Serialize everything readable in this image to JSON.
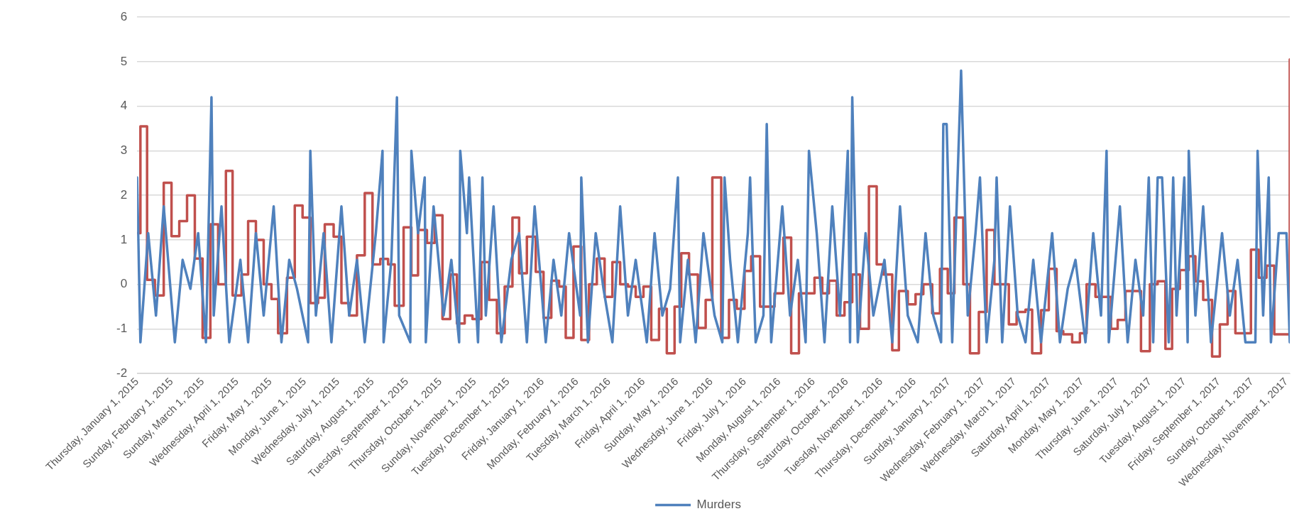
{
  "chart_data": {
    "type": "line",
    "ylim": [
      -2,
      6
    ],
    "yticks": [
      -2,
      -1,
      0,
      1,
      2,
      3,
      4,
      5,
      6
    ],
    "xlim": [
      "2015-01-01",
      "2017-11-04"
    ],
    "xticks": [
      {
        "value": "2015-01-01",
        "label": "Thursday, January 1, 2015"
      },
      {
        "value": "2015-02-01",
        "label": "Sunday, February 1, 2015"
      },
      {
        "value": "2015-03-01",
        "label": "Sunday, March 1, 2015"
      },
      {
        "value": "2015-04-01",
        "label": "Wednesday, April 1, 2015"
      },
      {
        "value": "2015-05-01",
        "label": "Friday, May 1, 2015"
      },
      {
        "value": "2015-06-01",
        "label": "Monday, June 1, 2015"
      },
      {
        "value": "2015-07-01",
        "label": "Wednesday, July 1, 2015"
      },
      {
        "value": "2015-08-01",
        "label": "Saturday, August 1, 2015"
      },
      {
        "value": "2015-09-01",
        "label": "Tuesday, September 1, 2015"
      },
      {
        "value": "2015-10-01",
        "label": "Thursday, October 1, 2015"
      },
      {
        "value": "2015-11-01",
        "label": "Sunday, November 1, 2015"
      },
      {
        "value": "2015-12-01",
        "label": "Tuesday, December 1, 2015"
      },
      {
        "value": "2016-01-01",
        "label": "Friday, January 1, 2016"
      },
      {
        "value": "2016-02-01",
        "label": "Monday, February 1, 2016"
      },
      {
        "value": "2016-03-01",
        "label": "Tuesday, March 1, 2016"
      },
      {
        "value": "2016-04-01",
        "label": "Friday, April 1, 2016"
      },
      {
        "value": "2016-05-01",
        "label": "Sunday, May 1, 2016"
      },
      {
        "value": "2016-06-01",
        "label": "Wednesday, June 1, 2016"
      },
      {
        "value": "2016-07-01",
        "label": "Friday, July 1, 2016"
      },
      {
        "value": "2016-08-01",
        "label": "Monday, August 1, 2016"
      },
      {
        "value": "2016-09-01",
        "label": "Thursday, September 1, 2016"
      },
      {
        "value": "2016-10-01",
        "label": "Saturday, October 1, 2016"
      },
      {
        "value": "2016-11-01",
        "label": "Tuesday, November 1, 2016"
      },
      {
        "value": "2016-12-01",
        "label": "Thursday, December 1, 2016"
      },
      {
        "value": "2017-01-01",
        "label": "Sunday, January 1, 2017"
      },
      {
        "value": "2017-02-01",
        "label": "Wednesday, February 1, 2017"
      },
      {
        "value": "2017-03-01",
        "label": "Wednesday, March 1, 2017"
      },
      {
        "value": "2017-04-01",
        "label": "Saturday, April 1, 2017"
      },
      {
        "value": "2017-05-01",
        "label": "Monday, May 1, 2017"
      },
      {
        "value": "2017-06-01",
        "label": "Thursday, June 1, 2017"
      },
      {
        "value": "2017-07-01",
        "label": "Saturday, July 1, 2017"
      },
      {
        "value": "2017-08-01",
        "label": "Tuesday, August 1, 2017"
      },
      {
        "value": "2017-09-01",
        "label": "Friday, September 1, 2017"
      },
      {
        "value": "2017-10-01",
        "label": "Sunday, October 1, 2017"
      },
      {
        "value": "2017-11-01",
        "label": "Wednesday, November 1, 2017"
      }
    ],
    "grid": "y",
    "legend": "bottom",
    "marker": "none",
    "line_style": "solid",
    "series": [
      {
        "name": "Murders",
        "color": "#4f81bd",
        "type": "line",
        "x": [
          "2015-01-01",
          "2015-01-04",
          "2015-01-11",
          "2015-01-18",
          "2015-01-25",
          "2015-02-04",
          "2015-02-11",
          "2015-02-18",
          "2015-02-25",
          "2015-03-04",
          "2015-03-09",
          "2015-03-11",
          "2015-03-18",
          "2015-03-25",
          "2015-04-04",
          "2015-04-11",
          "2015-04-18",
          "2015-04-25",
          "2015-05-04",
          "2015-05-11",
          "2015-05-18",
          "2015-05-25",
          "2015-06-04",
          "2015-06-06",
          "2015-06-11",
          "2015-06-18",
          "2015-06-25",
          "2015-07-04",
          "2015-07-11",
          "2015-07-18",
          "2015-07-25",
          "2015-08-04",
          "2015-08-10",
          "2015-08-11",
          "2015-08-18",
          "2015-08-23",
          "2015-08-25",
          "2015-09-04",
          "2015-09-05",
          "2015-09-11",
          "2015-09-17",
          "2015-09-18",
          "2015-09-25",
          "2015-10-04",
          "2015-10-11",
          "2015-10-18",
          "2015-10-19",
          "2015-10-25",
          "2015-10-27",
          "2015-11-04",
          "2015-11-08",
          "2015-11-11",
          "2015-11-18",
          "2015-11-25",
          "2015-12-04",
          "2015-12-11",
          "2015-12-18",
          "2015-12-25",
          "2016-01-04",
          "2016-01-11",
          "2016-01-18",
          "2016-01-25",
          "2016-02-04",
          "2016-02-05",
          "2016-02-11",
          "2016-02-18",
          "2016-02-25",
          "2016-03-04",
          "2016-03-11",
          "2016-03-18",
          "2016-03-25",
          "2016-04-04",
          "2016-04-11",
          "2016-04-18",
          "2016-04-25",
          "2016-05-02",
          "2016-05-04",
          "2016-05-11",
          "2016-05-18",
          "2016-05-25",
          "2016-06-04",
          "2016-06-11",
          "2016-06-13",
          "2016-06-18",
          "2016-06-25",
          "2016-07-04",
          "2016-07-06",
          "2016-07-11",
          "2016-07-18",
          "2016-07-21",
          "2016-07-25",
          "2016-08-04",
          "2016-08-11",
          "2016-08-18",
          "2016-08-25",
          "2016-08-28",
          "2016-09-04",
          "2016-09-11",
          "2016-09-18",
          "2016-09-25",
          "2016-10-02",
          "2016-10-04",
          "2016-10-06",
          "2016-10-11",
          "2016-10-18",
          "2016-10-25",
          "2016-11-04",
          "2016-11-11",
          "2016-11-18",
          "2016-11-25",
          "2016-12-04",
          "2016-12-11",
          "2016-12-18",
          "2016-12-25",
          "2016-12-27",
          "2016-12-30",
          "2017-01-04",
          "2017-01-12",
          "2017-01-18",
          "2017-01-25",
          "2017-01-29",
          "2017-02-04",
          "2017-02-11",
          "2017-02-13",
          "2017-02-18",
          "2017-02-25",
          "2017-03-04",
          "2017-03-11",
          "2017-03-18",
          "2017-03-25",
          "2017-04-04",
          "2017-04-11",
          "2017-04-18",
          "2017-04-25",
          "2017-05-04",
          "2017-05-11",
          "2017-05-18",
          "2017-05-23",
          "2017-05-25",
          "2017-06-04",
          "2017-06-11",
          "2017-06-18",
          "2017-06-25",
          "2017-06-30",
          "2017-07-04",
          "2017-07-08",
          "2017-07-12",
          "2017-07-18",
          "2017-07-22",
          "2017-07-25",
          "2017-08-01",
          "2017-08-04",
          "2017-08-05",
          "2017-08-11",
          "2017-08-18",
          "2017-08-25",
          "2017-09-04",
          "2017-09-11",
          "2017-09-18",
          "2017-09-25",
          "2017-10-04",
          "2017-10-06",
          "2017-10-11",
          "2017-10-16",
          "2017-10-18",
          "2017-10-25",
          "2017-11-01",
          "2017-11-04"
        ],
        "values": [
          2.4,
          -1.3,
          1.15,
          -0.7,
          1.75,
          -1.3,
          0.55,
          -0.1,
          1.15,
          -1.3,
          4.2,
          -0.7,
          1.75,
          -1.3,
          0.55,
          -1.3,
          1.15,
          -0.7,
          1.75,
          -1.3,
          0.55,
          -0.1,
          -1.3,
          3.0,
          -0.7,
          1.15,
          -1.3,
          1.75,
          -0.7,
          0.55,
          -1.3,
          1.15,
          3.0,
          -1.3,
          0.55,
          4.2,
          -0.7,
          -1.3,
          3.0,
          1.15,
          2.4,
          -1.3,
          1.75,
          -0.7,
          0.55,
          -1.3,
          3.0,
          1.15,
          2.4,
          -1.3,
          2.4,
          -0.7,
          1.75,
          -1.3,
          0.55,
          1.15,
          -1.3,
          1.75,
          -1.3,
          0.55,
          -0.7,
          1.15,
          -0.7,
          2.4,
          -1.3,
          1.15,
          -0.1,
          -1.3,
          1.75,
          -0.7,
          0.55,
          -1.3,
          1.15,
          -0.7,
          -0.1,
          2.4,
          -1.3,
          0.55,
          -1.3,
          1.15,
          -0.7,
          -1.3,
          2.4,
          0.55,
          -1.3,
          1.15,
          2.4,
          -1.3,
          -0.7,
          3.6,
          -1.3,
          1.75,
          -0.7,
          0.55,
          -1.3,
          3.0,
          1.15,
          -1.3,
          1.75,
          -0.7,
          3.0,
          -1.3,
          4.2,
          -1.3,
          1.15,
          -0.7,
          0.55,
          -1.3,
          1.75,
          -0.7,
          -1.3,
          1.15,
          -0.7,
          -1.3,
          3.6,
          3.6,
          -1.3,
          4.8,
          -0.7,
          1.15,
          2.4,
          -1.3,
          0.55,
          2.4,
          -1.3,
          1.75,
          -0.7,
          -1.3,
          0.55,
          -1.3,
          1.15,
          -1.3,
          -0.1,
          0.55,
          -1.3,
          1.15,
          -0.7,
          3.0,
          -1.3,
          1.75,
          -1.3,
          0.55,
          -0.7,
          2.4,
          -1.3,
          2.4,
          2.4,
          -1.3,
          2.4,
          -0.7,
          2.4,
          -1.3,
          3.0,
          -0.7,
          1.75,
          -1.3,
          1.15,
          -0.7,
          0.55,
          -1.3,
          -1.3,
          3.0,
          -0.7,
          2.4,
          -1.3,
          1.15,
          1.15,
          -1.3
        ]
      },
      {
        "color": "#c0504d",
        "type": "step",
        "x": [
          "2015-01-01",
          "2015-01-04",
          "2015-01-10",
          "2015-01-17",
          "2015-01-25",
          "2015-02-01",
          "2015-02-08",
          "2015-02-15",
          "2015-02-22",
          "2015-03-01",
          "2015-03-08",
          "2015-03-15",
          "2015-03-22",
          "2015-03-28",
          "2015-04-05",
          "2015-04-11",
          "2015-04-18",
          "2015-04-25",
          "2015-05-02",
          "2015-05-08",
          "2015-05-16",
          "2015-05-23",
          "2015-05-30",
          "2015-06-06",
          "2015-06-13",
          "2015-06-19",
          "2015-06-27",
          "2015-07-04",
          "2015-07-11",
          "2015-07-18",
          "2015-07-25",
          "2015-08-01",
          "2015-08-08",
          "2015-08-15",
          "2015-08-21",
          "2015-08-29",
          "2015-09-05",
          "2015-09-11",
          "2015-09-19",
          "2015-09-26",
          "2015-10-03",
          "2015-10-10",
          "2015-10-16",
          "2015-10-23",
          "2015-10-30",
          "2015-11-07",
          "2015-11-14",
          "2015-11-21",
          "2015-11-28",
          "2015-12-05",
          "2015-12-11",
          "2015-12-18",
          "2015-12-26",
          "2016-01-02",
          "2016-01-09",
          "2016-01-16",
          "2016-01-22",
          "2016-01-29",
          "2016-02-05",
          "2016-02-12",
          "2016-02-19",
          "2016-02-26",
          "2016-03-04",
          "2016-03-11",
          "2016-03-18",
          "2016-03-25",
          "2016-04-01",
          "2016-04-08",
          "2016-04-15",
          "2016-04-22",
          "2016-04-29",
          "2016-05-05",
          "2016-05-12",
          "2016-05-20",
          "2016-05-27",
          "2016-06-02",
          "2016-06-10",
          "2016-06-17",
          "2016-06-24",
          "2016-07-01",
          "2016-07-07",
          "2016-07-15",
          "2016-07-28",
          "2016-08-05",
          "2016-08-12",
          "2016-08-19",
          "2016-09-02",
          "2016-09-09",
          "2016-09-15",
          "2016-09-22",
          "2016-09-29",
          "2016-10-06",
          "2016-10-13",
          "2016-10-21",
          "2016-10-28",
          "2016-11-03",
          "2016-11-11",
          "2016-11-17",
          "2016-11-25",
          "2016-12-02",
          "2016-12-09",
          "2016-12-17",
          "2016-12-24",
          "2016-12-31",
          "2017-01-06",
          "2017-01-14",
          "2017-01-20",
          "2017-01-28",
          "2017-02-04",
          "2017-02-11",
          "2017-02-24",
          "2017-03-03",
          "2017-03-11",
          "2017-03-17",
          "2017-03-25",
          "2017-04-01",
          "2017-04-08",
          "2017-04-14",
          "2017-04-22",
          "2017-04-29",
          "2017-05-05",
          "2017-05-13",
          "2017-05-27",
          "2017-06-02",
          "2017-06-09",
          "2017-06-23",
          "2017-07-01",
          "2017-07-08",
          "2017-07-15",
          "2017-07-21",
          "2017-07-28",
          "2017-08-05",
          "2017-08-11",
          "2017-08-18",
          "2017-08-26",
          "2017-09-02",
          "2017-09-09",
          "2017-09-16",
          "2017-09-30",
          "2017-10-07",
          "2017-10-14",
          "2017-10-21",
          "2017-11-04"
        ],
        "values": [
          1.15,
          3.55,
          0.1,
          -0.25,
          2.28,
          1.08,
          1.42,
          2.0,
          0.58,
          -1.2,
          1.35,
          0.0,
          2.55,
          -0.25,
          0.22,
          1.42,
          1.0,
          0.0,
          -0.33,
          -1.1,
          0.15,
          1.77,
          1.5,
          -0.42,
          -0.3,
          1.35,
          1.07,
          -0.42,
          -0.7,
          0.65,
          2.05,
          0.45,
          0.57,
          0.45,
          -0.48,
          1.28,
          0.2,
          1.22,
          0.93,
          1.55,
          -0.78,
          0.22,
          -0.88,
          -0.7,
          -0.78,
          0.5,
          -0.35,
          -1.1,
          -0.05,
          1.5,
          0.25,
          1.07,
          0.28,
          -0.75,
          0.08,
          -0.05,
          -1.2,
          0.85,
          -1.25,
          0.0,
          0.58,
          -0.28,
          0.5,
          0.0,
          -0.05,
          -0.28,
          -0.05,
          -1.25,
          -0.55,
          -1.55,
          -0.5,
          0.7,
          0.22,
          -0.98,
          -0.35,
          2.4,
          -1.2,
          -0.35,
          -0.55,
          0.3,
          0.63,
          -0.5,
          -0.2,
          1.05,
          -1.55,
          -0.2,
          0.15,
          -0.2,
          0.08,
          -0.7,
          -0.4,
          0.22,
          -1.0,
          2.2,
          0.45,
          0.22,
          -1.48,
          -0.15,
          -0.45,
          -0.22,
          0.0,
          -0.65,
          0.35,
          -0.2,
          1.5,
          0.0,
          -1.55,
          -0.62,
          1.22,
          0.0,
          -0.9,
          -0.62,
          -0.57,
          -1.55,
          -0.58,
          0.35,
          -1.05,
          -1.12,
          -1.3,
          -1.1,
          0.0,
          -0.28,
          -1.0,
          -0.8,
          -0.15,
          -1.5,
          0.0,
          0.07,
          -1.45,
          -0.1,
          0.32,
          0.63,
          0.07,
          -0.35,
          -1.62,
          -0.9,
          -0.15,
          -1.1,
          0.78,
          0.15,
          0.42,
          -1.12,
          5.05
        ]
      }
    ]
  }
}
